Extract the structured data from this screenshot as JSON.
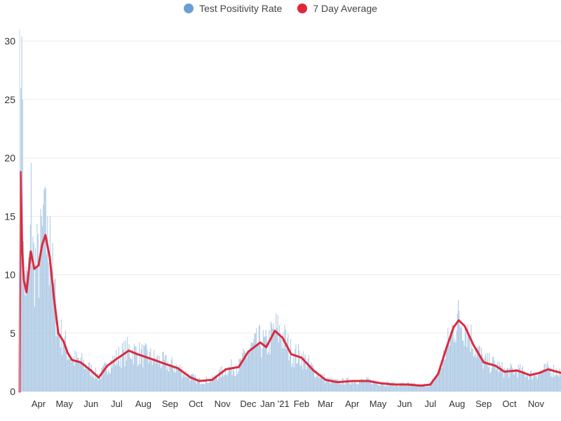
{
  "chart_data": {
    "type": "bar+line",
    "legend": [
      {
        "name": "Test Positivity Rate",
        "color": "#6b9fd4"
      },
      {
        "name": "7 Day Average",
        "color": "#e0263b"
      }
    ],
    "ylim": [
      0,
      31
    ],
    "yticks": [
      "0",
      "5",
      "10",
      "15",
      "20",
      "25",
      "30"
    ],
    "xlabels": [
      "Apr",
      "May",
      "Jun",
      "Jul",
      "Aug",
      "Sep",
      "Oct",
      "Nov",
      "Dec",
      "Jan '21",
      "Feb",
      "Mar",
      "Apr",
      "May",
      "Jun",
      "Jul",
      "Aug",
      "Sep",
      "Oct",
      "Nov"
    ],
    "x_start": "2020-03-10",
    "x_end": "2021-11-30",
    "label_dates": [
      "2020-04-01",
      "2020-05-01",
      "2020-06-01",
      "2020-07-01",
      "2020-08-01",
      "2020-09-01",
      "2020-10-01",
      "2020-11-01",
      "2020-12-01",
      "2021-01-01",
      "2021-02-01",
      "2021-03-01",
      "2021-04-01",
      "2021-05-01",
      "2021-06-01",
      "2021-07-01",
      "2021-08-01",
      "2021-09-01",
      "2021-10-01",
      "2021-11-01"
    ],
    "series": [
      {
        "name": "7 Day Average",
        "anchors": [
          [
            "2020-03-10",
            0
          ],
          [
            "2020-03-11",
            18.8
          ],
          [
            "2020-03-13",
            12
          ],
          [
            "2020-03-15",
            9.5
          ],
          [
            "2020-03-18",
            8.5
          ],
          [
            "2020-03-23",
            12
          ],
          [
            "2020-03-27",
            10.5
          ],
          [
            "2020-04-01",
            10.8
          ],
          [
            "2020-04-05",
            12.5
          ],
          [
            "2020-04-09",
            13.4
          ],
          [
            "2020-04-14",
            11.5
          ],
          [
            "2020-04-19",
            8
          ],
          [
            "2020-04-24",
            5
          ],
          [
            "2020-04-30",
            4.3
          ],
          [
            "2020-05-05",
            3.3
          ],
          [
            "2020-05-10",
            2.7
          ],
          [
            "2020-05-20",
            2.5
          ],
          [
            "2020-06-01",
            1.8
          ],
          [
            "2020-06-10",
            1.2
          ],
          [
            "2020-06-20",
            2.2
          ],
          [
            "2020-07-01",
            2.8
          ],
          [
            "2020-07-15",
            3.5
          ],
          [
            "2020-07-25",
            3.2
          ],
          [
            "2020-08-10",
            2.8
          ],
          [
            "2020-08-25",
            2.4
          ],
          [
            "2020-09-10",
            2.0
          ],
          [
            "2020-09-25",
            1.2
          ],
          [
            "2020-10-05",
            0.9
          ],
          [
            "2020-10-20",
            1.0
          ],
          [
            "2020-11-05",
            1.9
          ],
          [
            "2020-11-20",
            2.1
          ],
          [
            "2020-12-01",
            3.4
          ],
          [
            "2020-12-15",
            4.2
          ],
          [
            "2020-12-22",
            3.8
          ],
          [
            "2021-01-01",
            5.2
          ],
          [
            "2021-01-10",
            4.6
          ],
          [
            "2021-01-20",
            3.2
          ],
          [
            "2021-02-01",
            2.9
          ],
          [
            "2021-02-15",
            1.8
          ],
          [
            "2021-03-01",
            1.0
          ],
          [
            "2021-03-15",
            0.8
          ],
          [
            "2021-04-01",
            0.9
          ],
          [
            "2021-04-20",
            0.9
          ],
          [
            "2021-05-05",
            0.7
          ],
          [
            "2021-05-20",
            0.6
          ],
          [
            "2021-06-05",
            0.6
          ],
          [
            "2021-06-20",
            0.5
          ],
          [
            "2021-07-01",
            0.6
          ],
          [
            "2021-07-10",
            1.5
          ],
          [
            "2021-07-20",
            3.8
          ],
          [
            "2021-07-28",
            5.5
          ],
          [
            "2021-08-03",
            6.1
          ],
          [
            "2021-08-10",
            5.6
          ],
          [
            "2021-08-20",
            4.0
          ],
          [
            "2021-09-01",
            2.5
          ],
          [
            "2021-09-15",
            2.2
          ],
          [
            "2021-09-25",
            1.7
          ],
          [
            "2021-10-10",
            1.8
          ],
          [
            "2021-10-25",
            1.4
          ],
          [
            "2021-11-05",
            1.6
          ],
          [
            "2021-11-15",
            1.9
          ],
          [
            "2021-11-30",
            1.6
          ]
        ]
      }
    ]
  }
}
